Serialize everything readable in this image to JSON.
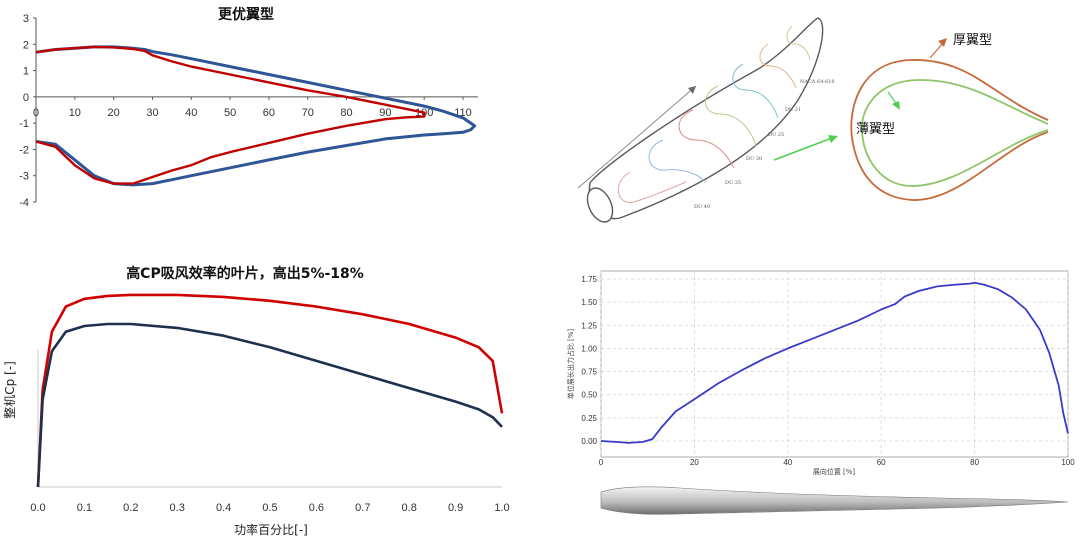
{
  "chart_data": [
    {
      "type": "line",
      "title": "更优翼型",
      "xlabel": "",
      "ylabel": "",
      "xlim": [
        0,
        115
      ],
      "ylim": [
        -4,
        3
      ],
      "x_ticks": [
        0,
        10,
        20,
        30,
        40,
        50,
        60,
        70,
        80,
        90,
        100,
        110
      ],
      "y_ticks": [
        3,
        2,
        1,
        0,
        -1,
        -2,
        -3,
        -4
      ],
      "grid": false,
      "series": [
        {
          "color": "#2f5597",
          "x": [
            0,
            5,
            10,
            15,
            20,
            25,
            28,
            30,
            35,
            40,
            50,
            60,
            70,
            80,
            90,
            95,
            100,
            105,
            110,
            112,
            113,
            112,
            110,
            105,
            100,
            90,
            80,
            70,
            60,
            50,
            40,
            35,
            30,
            25,
            20,
            15,
            10,
            5,
            0
          ],
          "y": [
            1.7,
            1.8,
            1.85,
            1.9,
            1.9,
            1.85,
            1.8,
            1.72,
            1.6,
            1.45,
            1.15,
            0.85,
            0.55,
            0.25,
            -0.05,
            -0.2,
            -0.35,
            -0.55,
            -0.8,
            -1.0,
            -1.1,
            -1.25,
            -1.35,
            -1.4,
            -1.45,
            -1.6,
            -1.85,
            -2.1,
            -2.4,
            -2.7,
            -3.0,
            -3.15,
            -3.3,
            -3.35,
            -3.3,
            -3.0,
            -2.4,
            -1.8,
            -1.7
          ]
        },
        {
          "color": "#c00000",
          "x": [
            0,
            5,
            10,
            15,
            20,
            25,
            28,
            30,
            35,
            40,
            50,
            60,
            70,
            80,
            90,
            95,
            100,
            100,
            95,
            90,
            80,
            70,
            60,
            50,
            45,
            40,
            35,
            30,
            25,
            20,
            15,
            10,
            5,
            0
          ],
          "y": [
            1.7,
            1.8,
            1.85,
            1.9,
            1.88,
            1.82,
            1.75,
            1.58,
            1.35,
            1.15,
            0.85,
            0.55,
            0.25,
            0.0,
            -0.3,
            -0.45,
            -0.6,
            -0.75,
            -0.78,
            -0.85,
            -1.1,
            -1.4,
            -1.75,
            -2.1,
            -2.3,
            -2.6,
            -2.8,
            -3.05,
            -3.3,
            -3.3,
            -3.1,
            -2.6,
            -1.9,
            -1.7
          ]
        }
      ]
    },
    {
      "type": "line",
      "title": "高CP吸风效率的叶片，高出5%-18%",
      "xlabel": "功率百分比[-]",
      "ylabel": "整机Cp [-]",
      "xlim": [
        0,
        1.0
      ],
      "x_ticks": [
        "0.0",
        "0.1",
        "0.2",
        "0.3",
        "0.4",
        "0.5",
        "0.6",
        "0.7",
        "0.8",
        "0.9",
        "1.0"
      ],
      "ylim": [
        0,
        1
      ],
      "grid": false,
      "series": [
        {
          "color": "#d00000",
          "x": [
            0.0,
            0.01,
            0.03,
            0.06,
            0.1,
            0.15,
            0.2,
            0.3,
            0.4,
            0.5,
            0.6,
            0.7,
            0.8,
            0.9,
            0.95,
            0.98,
            1.0
          ],
          "y": [
            0.0,
            0.5,
            0.8,
            0.93,
            0.97,
            0.985,
            0.99,
            0.99,
            0.98,
            0.96,
            0.93,
            0.89,
            0.84,
            0.77,
            0.72,
            0.65,
            0.38
          ]
        },
        {
          "color": "#1f2f4e",
          "x": [
            0.0,
            0.01,
            0.03,
            0.06,
            0.1,
            0.15,
            0.2,
            0.3,
            0.4,
            0.5,
            0.6,
            0.7,
            0.8,
            0.9,
            0.95,
            0.98,
            1.0
          ],
          "y": [
            0.0,
            0.45,
            0.7,
            0.8,
            0.83,
            0.84,
            0.84,
            0.82,
            0.78,
            0.72,
            0.65,
            0.58,
            0.51,
            0.44,
            0.4,
            0.36,
            0.31
          ]
        }
      ]
    },
    {
      "type": "line",
      "title": "",
      "xlabel": "展向位置 [%]",
      "ylabel": "单位展长出力占比 [%]",
      "xlim": [
        0,
        100
      ],
      "ylim": [
        -0.05,
        1.8
      ],
      "x_ticks": [
        "0",
        "20",
        "40",
        "60",
        "80",
        "100"
      ],
      "y_ticks": [
        "0.00",
        "0.25",
        "0.50",
        "0.75",
        "1.00",
        "1.25",
        "1.50",
        "1.75"
      ],
      "grid": true,
      "series": [
        {
          "color": "#3a3ac8",
          "x": [
            0,
            3,
            6,
            9,
            11,
            13,
            16,
            20,
            25,
            30,
            35,
            40,
            45,
            50,
            55,
            60,
            63,
            65,
            68,
            72,
            76,
            79,
            80,
            82,
            85,
            88,
            91,
            94,
            96,
            98,
            99,
            100
          ],
          "y": [
            0.0,
            -0.01,
            -0.02,
            -0.01,
            0.02,
            0.15,
            0.32,
            0.45,
            0.62,
            0.76,
            0.89,
            1.0,
            1.1,
            1.2,
            1.3,
            1.42,
            1.48,
            1.56,
            1.62,
            1.67,
            1.69,
            1.7,
            1.71,
            1.69,
            1.64,
            1.55,
            1.42,
            1.2,
            0.95,
            0.6,
            0.3,
            0.08
          ]
        }
      ]
    }
  ],
  "diagram": {
    "blade_section_labels": [
      "NACA 64-618",
      "DU 21",
      "DU 25",
      "DU 30",
      "DU 35",
      "DU 40"
    ],
    "airfoil_labels": {
      "thick": "厚翼型",
      "thin": "薄翼型"
    },
    "colors": {
      "thick_airfoil": "#c76a3a",
      "thin_airfoil": "#8cc66a",
      "arrow_thick": "#c76a3a",
      "arrow_thin": "#4fcf4f"
    }
  }
}
